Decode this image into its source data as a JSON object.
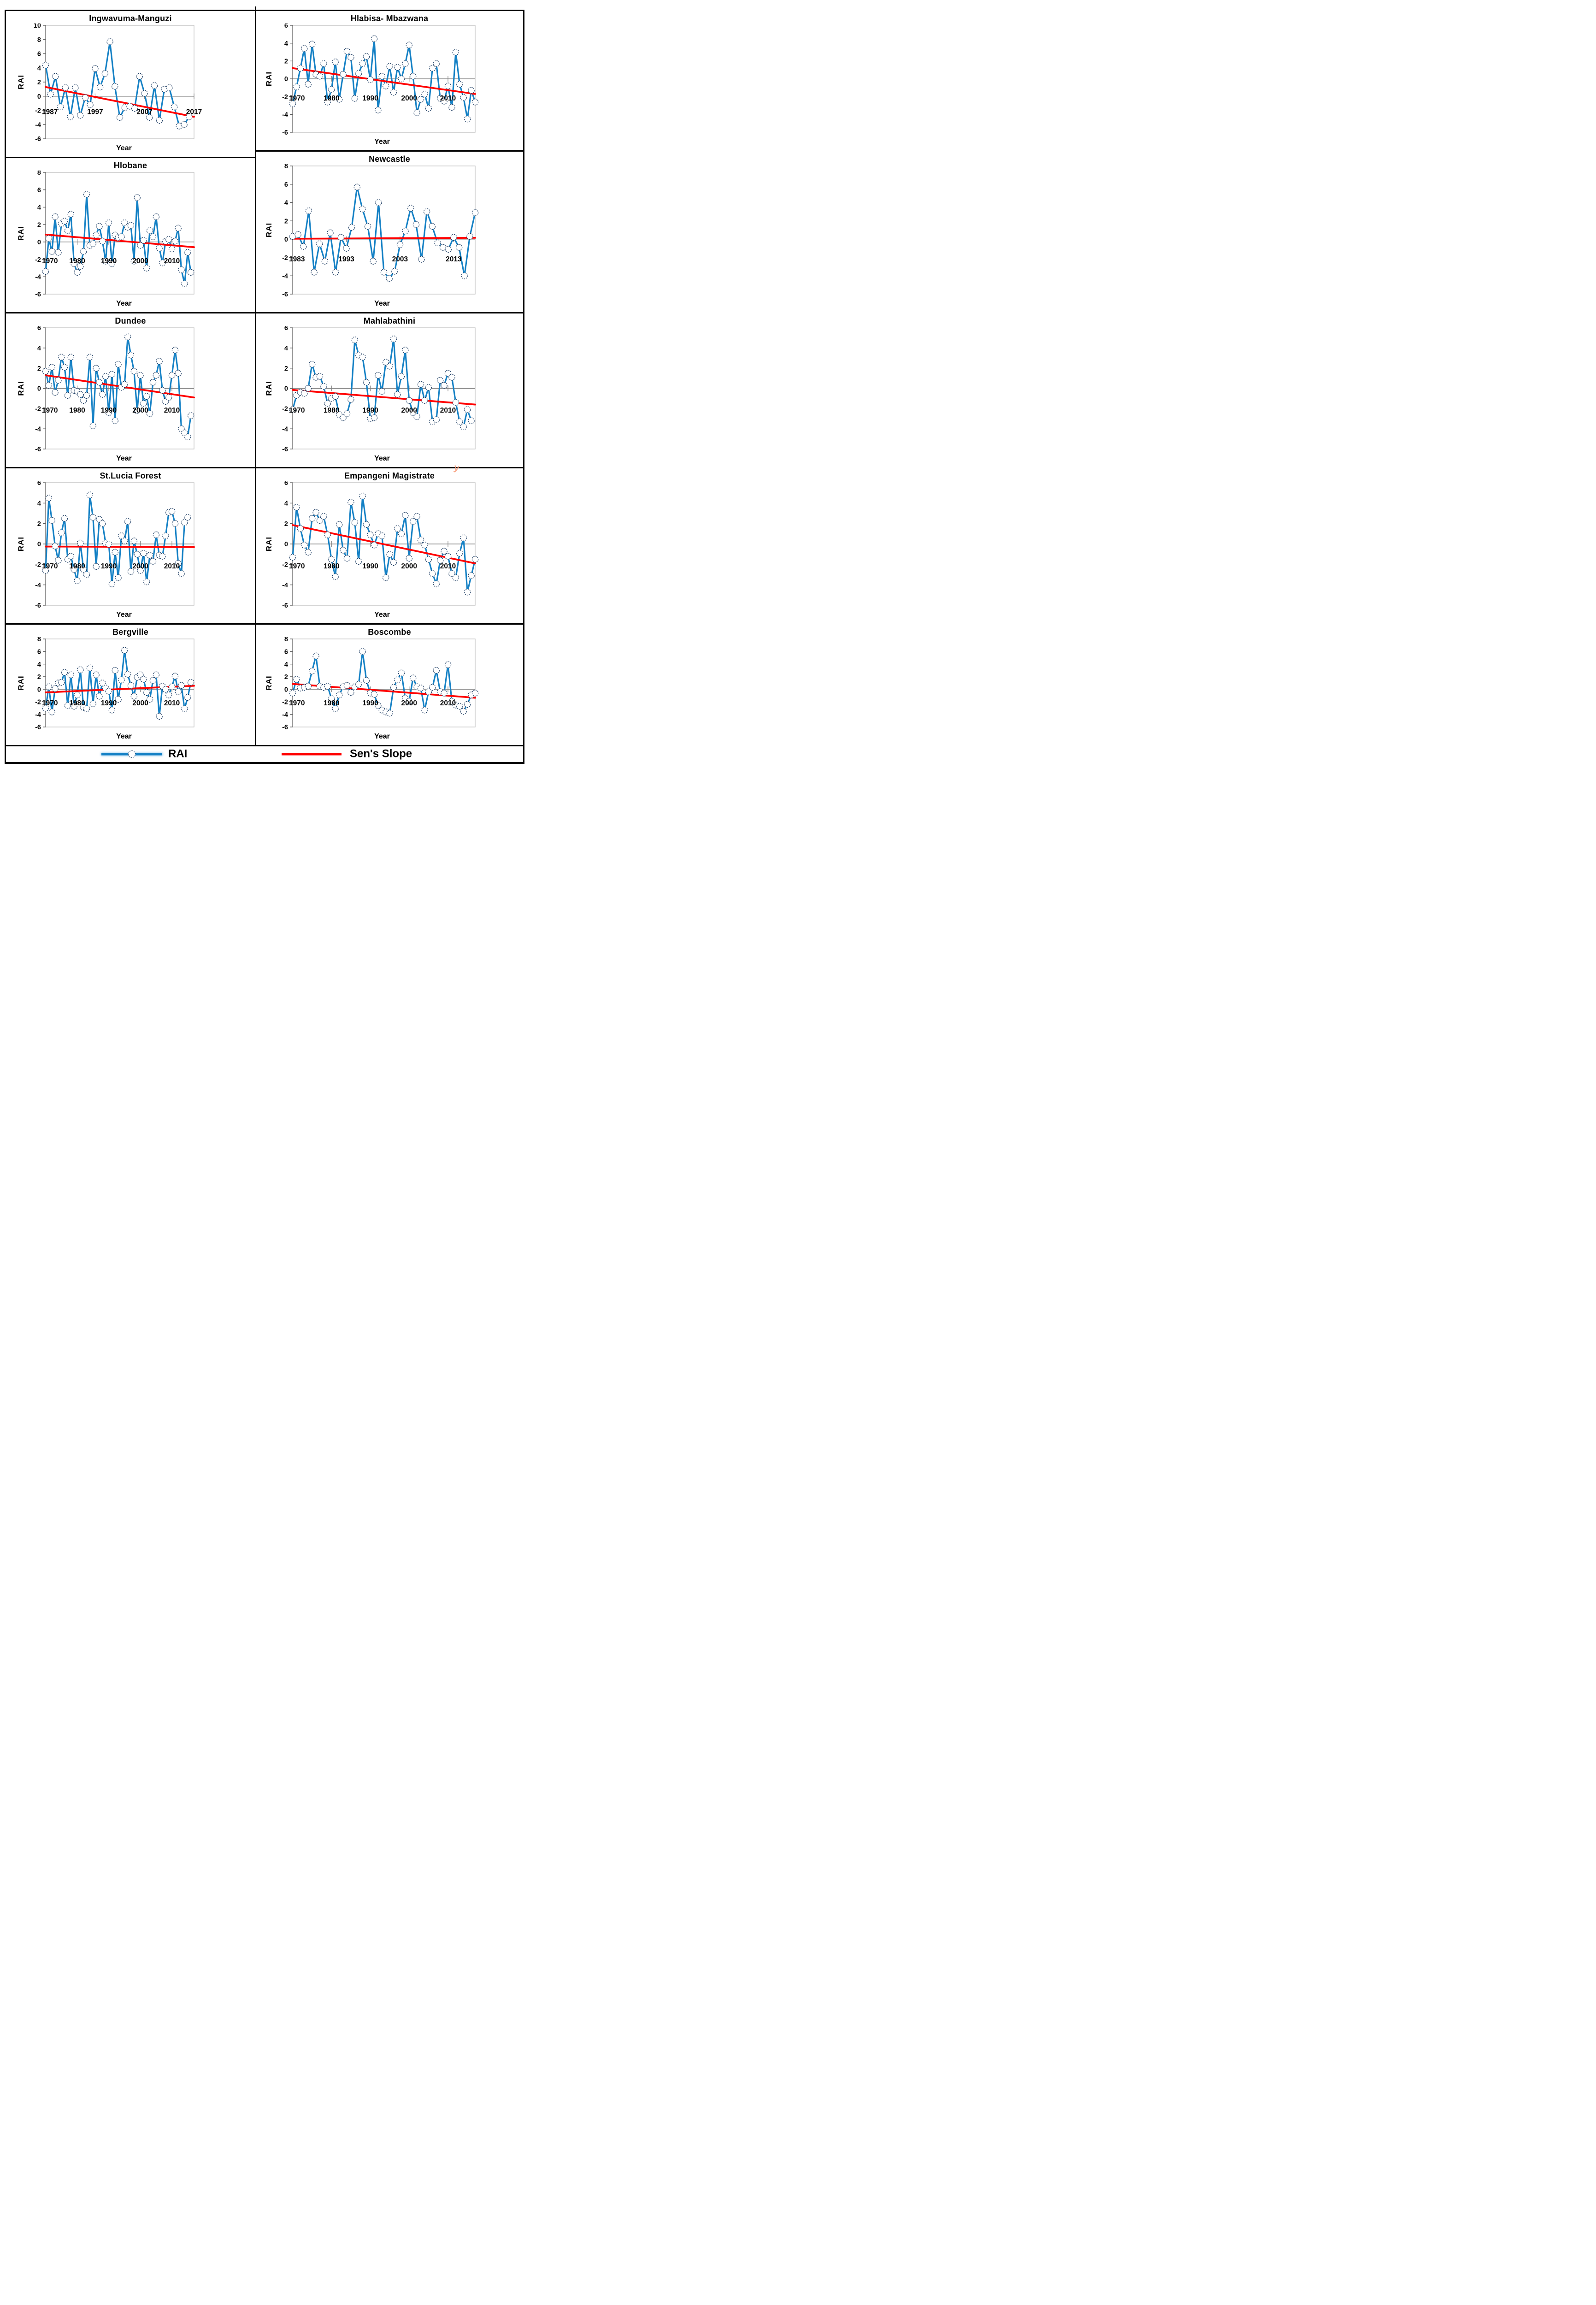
{
  "figure": {
    "background": "#ffffff"
  },
  "legend": {
    "items": [
      {
        "label": "RAI",
        "type": "line-with-marker",
        "color": "#1581C5"
      },
      {
        "label": "Sen's Slope",
        "type": "line",
        "color": "#FF0000"
      }
    ]
  },
  "stray_mark": {
    "text": "y",
    "color": "#F89B77"
  },
  "style_colors": {
    "series_line": "#1581C5",
    "trend_line": "#FF0000",
    "marker_stroke": "#17375E",
    "marker_fill": "#FFFFFF",
    "axis": "#808080",
    "plot_border": "#C0C0C0",
    "tick": "#595959",
    "text": "#000000"
  },
  "chart_data": [
    {
      "type": "line",
      "title": "Ingwavuma-Manguzi",
      "xlabel": "Year",
      "ylabel": "RAI",
      "series_name": "RAI",
      "trend_name": "Sen's Slope",
      "x_start": 1987,
      "x_end": 2017,
      "x_step": 1,
      "xticks": [
        1987,
        1997,
        2007,
        2017
      ],
      "ylim": [
        -6,
        10
      ],
      "ytick_step": 2,
      "grid": "zero-line-only",
      "legend_position": "none",
      "values": [
        4.4,
        0.3,
        2.8,
        -1.5,
        1.2,
        -2.9,
        1.2,
        -2.7,
        -0.2,
        -1.2,
        3.9,
        1.3,
        3.2,
        7.7,
        1.4,
        -3.0,
        -1.6,
        -1.4,
        -1.7,
        2.8,
        0.4,
        -3.0,
        1.5,
        -3.4,
        1.0,
        1.2,
        -1.5,
        -4.2,
        -4.0,
        -2.9
      ],
      "sens_slope": {
        "start": 1.3,
        "end": -2.9
      }
    },
    {
      "type": "line",
      "title": "Hlabisa- Mbazwana",
      "xlabel": "Year",
      "ylabel": "RAI",
      "series_name": "RAI",
      "trend_name": "Sen's Slope",
      "x_start": 1970,
      "x_end": 2017,
      "x_step": 1,
      "xticks": [
        1970,
        1980,
        1990,
        2000,
        2010
      ],
      "ylim": [
        -6,
        6
      ],
      "ytick_step": 2,
      "grid": "zero-line-only",
      "legend_position": "none",
      "values": [
        -2.8,
        -0.9,
        1.2,
        3.4,
        -0.6,
        3.9,
        0.5,
        0.3,
        1.7,
        -2.6,
        -1.2,
        1.9,
        -2.3,
        0.5,
        3.1,
        2.4,
        -2.2,
        0.6,
        1.7,
        2.5,
        -0.1,
        4.5,
        -3.5,
        0.3,
        -0.8,
        1.4,
        -1.5,
        1.3,
        0.0,
        1.7,
        3.8,
        0.3,
        -3.8,
        -2.3,
        -1.7,
        -3.3,
        1.2,
        1.7,
        -2.2,
        -2.5,
        -0.8,
        -3.2,
        3.0,
        -0.6,
        -2.1,
        -4.5,
        -1.3,
        -2.6
      ],
      "sens_slope": {
        "start": 1.2,
        "end": -1.7
      }
    },
    {
      "type": "line",
      "title": "Hlobane",
      "xlabel": "Year",
      "ylabel": "RAI",
      "series_name": "RAI",
      "trend_name": "Sen's Slope",
      "x_start": 1970,
      "x_end": 2017,
      "x_step": 1,
      "xticks": [
        1970,
        1980,
        1990,
        2000,
        2010
      ],
      "ylim": [
        -6,
        8
      ],
      "ytick_step": 2,
      "grid": "zero-line-only",
      "legend_position": "none",
      "values": [
        -3.4,
        0.4,
        -1.1,
        2.9,
        -1.2,
        2.1,
        2.4,
        1.3,
        3.2,
        -2.5,
        -3.5,
        -2.8,
        -1.1,
        5.5,
        -0.4,
        -0.2,
        0.8,
        1.8,
        0.1,
        -2.2,
        2.2,
        -2.5,
        0.8,
        0.5,
        0.6,
        2.2,
        1.7,
        1.9,
        -2.2,
        5.1,
        -0.4,
        0.2,
        -3.0,
        1.3,
        0.6,
        2.9,
        -0.7,
        -2.4,
        0.1,
        0.3,
        -0.8,
        0.1,
        1.6,
        -3.2,
        -4.8,
        -1.2,
        -3.5
      ],
      "sens_slope": {
        "start": 0.85,
        "end": -0.6
      }
    },
    {
      "type": "line",
      "title": "Newcastle",
      "xlabel": "Year",
      "ylabel": "RAI",
      "series_name": "RAI",
      "trend_name": "Sen's Slope",
      "x_start": 1983,
      "x_end": 2017,
      "x_step": 1,
      "xticks": [
        1983,
        1993,
        2003,
        2013
      ],
      "ylim": [
        -6,
        8
      ],
      "ytick_step": 2,
      "grid": "zero-line-only",
      "legend_position": "none",
      "values": [
        0.3,
        0.5,
        -0.8,
        3.1,
        -3.6,
        -0.5,
        -2.4,
        0.7,
        -3.6,
        0.2,
        -1.0,
        1.3,
        5.7,
        3.3,
        1.4,
        -2.4,
        4.0,
        -3.6,
        -4.3,
        -3.5,
        -0.6,
        0.9,
        3.4,
        1.6,
        -2.2,
        3.0,
        1.4,
        -0.4,
        -0.9,
        -1.1,
        0.2,
        -0.9,
        -4.0,
        0.3,
        2.9
      ],
      "sens_slope": {
        "start": 0.05,
        "end": 0.15
      }
    },
    {
      "type": "line",
      "title": "Dundee",
      "xlabel": "Year",
      "ylabel": "RAI",
      "series_name": "RAI",
      "trend_name": "Sen's Slope",
      "x_start": 1970,
      "x_end": 2017,
      "x_step": 1,
      "xticks": [
        1970,
        1980,
        1990,
        2000,
        2010
      ],
      "ylim": [
        -6,
        6
      ],
      "ytick_step": 2,
      "grid": "zero-line-only",
      "legend_position": "none",
      "values": [
        1.7,
        0.3,
        2.1,
        -0.4,
        0.8,
        3.1,
        2.1,
        -0.7,
        3.1,
        -0.2,
        -0.3,
        -0.6,
        -1.2,
        -0.7,
        3.1,
        -3.7,
        2.0,
        0.6,
        -0.6,
        1.2,
        -2.4,
        1.4,
        -3.2,
        2.4,
        0.1,
        0.4,
        5.1,
        3.3,
        1.7,
        -2.2,
        1.3,
        -1.5,
        -0.8,
        -2.5,
        0.6,
        1.3,
        2.7,
        -0.2,
        -1.3,
        -0.9,
        1.3,
        3.8,
        1.5,
        -4.0,
        -4.4,
        -4.8,
        -2.7
      ],
      "sens_slope": {
        "start": 1.3,
        "end": -0.9
      }
    },
    {
      "type": "line",
      "title": "Mahlabathini",
      "xlabel": "Year",
      "ylabel": "RAI",
      "series_name": "RAI",
      "trend_name": "Sen's Slope",
      "x_start": 1970,
      "x_end": 2017,
      "x_step": 1,
      "xticks": [
        1970,
        1980,
        1990,
        2000,
        2010
      ],
      "ylim": [
        -6,
        6
      ],
      "ytick_step": 2,
      "grid": "zero-line-only",
      "legend_position": "none",
      "values": [
        -2.1,
        -0.7,
        -0.4,
        -0.5,
        0.0,
        2.4,
        1.1,
        1.2,
        0.2,
        -1.5,
        -1.0,
        -0.8,
        -2.6,
        -2.9,
        -2.5,
        -1.1,
        4.8,
        3.3,
        3.1,
        0.6,
        -3.0,
        -2.9,
        1.3,
        -0.3,
        2.6,
        2.2,
        4.9,
        -0.6,
        1.2,
        3.8,
        -1.2,
        -2.4,
        -2.8,
        0.4,
        -1.2,
        0.1,
        -3.3,
        -3.1,
        0.8,
        0.3,
        1.5,
        1.1,
        -1.4,
        -3.3,
        -3.8,
        -2.1,
        -3.2
      ],
      "sens_slope": {
        "start": -0.15,
        "end": -1.6
      }
    },
    {
      "type": "line",
      "title": "St.Lucia Forest",
      "xlabel": "Year",
      "ylabel": "RAI",
      "series_name": "RAI",
      "trend_name": "Sen's Slope",
      "x_start": 1970,
      "x_end": 2017,
      "x_step": 1,
      "xticks": [
        1970,
        1980,
        1990,
        2000,
        2010
      ],
      "ylim": [
        -6,
        6
      ],
      "ytick_step": 2,
      "grid": "zero-line-only",
      "legend_position": "none",
      "values": [
        -2.6,
        4.5,
        2.3,
        -0.2,
        -1.6,
        1.1,
        2.5,
        -1.5,
        -1.2,
        -2.5,
        -3.6,
        0.1,
        -2.5,
        -3.0,
        4.8,
        2.6,
        -2.2,
        2.4,
        2.0,
        0.1,
        0.0,
        -3.9,
        -0.8,
        -3.3,
        0.8,
        0.3,
        2.2,
        -2.7,
        0.3,
        -1.0,
        -2.6,
        -0.9,
        -3.7,
        -1.1,
        -1.7,
        0.9,
        -1.1,
        -1.2,
        0.8,
        3.1,
        3.2,
        2.0,
        -1.9,
        -2.9,
        2.1,
        2.6
      ],
      "sens_slope": {
        "start": -0.25,
        "end": -0.3
      }
    },
    {
      "type": "line",
      "title": "Empangeni Magistrate",
      "xlabel": "Year",
      "ylabel": "RAI",
      "series_name": "RAI",
      "trend_name": "Sen's Slope",
      "x_start": 1970,
      "x_end": 2017,
      "x_step": 1,
      "xticks": [
        1970,
        1980,
        1990,
        2000,
        2010
      ],
      "ylim": [
        -6,
        6
      ],
      "ytick_step": 2,
      "grid": "zero-line-only",
      "legend_position": "none",
      "values": [
        -1.3,
        3.6,
        1.5,
        -0.1,
        -0.8,
        2.5,
        3.1,
        2.3,
        2.7,
        0.9,
        -1.5,
        -3.2,
        1.9,
        -0.6,
        -1.4,
        4.1,
        2.1,
        -1.7,
        4.7,
        1.9,
        0.9,
        -0.1,
        1.0,
        0.8,
        -3.3,
        -1.0,
        -1.8,
        1.5,
        1.0,
        2.8,
        -1.4,
        2.2,
        2.7,
        0.4,
        -0.1,
        -1.5,
        -2.9,
        -3.9,
        -1.6,
        -0.7,
        -1.2,
        -2.9,
        -3.3,
        -0.9,
        0.6,
        -4.7,
        -3.1,
        -1.5
      ],
      "sens_slope": {
        "start": 1.85,
        "end": -1.9
      }
    },
    {
      "type": "line",
      "title": "Bergville",
      "xlabel": "Year",
      "ylabel": "RAI",
      "series_name": "RAI",
      "trend_name": "Sen's Slope",
      "x_start": 1970,
      "x_end": 2017,
      "x_step": 1,
      "xticks": [
        1970,
        1980,
        1990,
        2000,
        2010
      ],
      "ylim": [
        -6,
        8
      ],
      "ytick_step": 2,
      "grid": "zero-line-only",
      "legend_position": "none",
      "values": [
        -3.0,
        0.4,
        -3.6,
        0.1,
        1.0,
        1.1,
        2.7,
        -2.6,
        2.3,
        -2.7,
        -0.9,
        3.1,
        -2.9,
        -3.1,
        3.4,
        -2.3,
        2.3,
        -1.1,
        1.0,
        0.2,
        -0.3,
        -3.3,
        3.0,
        -1.6,
        1.5,
        6.2,
        2.4,
        0.6,
        -1.1,
        1.9,
        2.3,
        1.6,
        -0.5,
        -1.6,
        1.4,
        2.3,
        -4.3,
        0.5,
        0.0,
        -0.9,
        0.4,
        2.1,
        -0.4,
        0.6,
        -3.1,
        -1.3,
        1.1
      ],
      "sens_slope": {
        "start": -0.5,
        "end": 0.55
      }
    },
    {
      "type": "line",
      "title": "Boscombe",
      "xlabel": "Year",
      "ylabel": "RAI",
      "series_name": "RAI",
      "trend_name": "Sen's Slope",
      "x_start": 1970,
      "x_end": 2017,
      "x_step": 1,
      "xticks": [
        1970,
        1980,
        1990,
        2000,
        2010
      ],
      "ylim": [
        -6,
        8
      ],
      "ytick_step": 2,
      "grid": "zero-line-only",
      "legend_position": "none",
      "values": [
        -0.6,
        1.6,
        0.2,
        0.3,
        0.5,
        2.9,
        5.3,
        0.5,
        0.3,
        0.5,
        -1.5,
        -3.1,
        -0.9,
        0.4,
        0.6,
        -0.5,
        0.4,
        0.8,
        6.0,
        1.4,
        -0.6,
        -0.8,
        -2.6,
        -3.3,
        -3.6,
        -3.8,
        0.3,
        1.5,
        2.6,
        -1.4,
        -1.9,
        1.8,
        0.4,
        0.2,
        -3.3,
        -0.4,
        0.3,
        3.0,
        -0.4,
        -0.6,
        3.9,
        -1.9,
        -2.5,
        -2.7,
        -3.5,
        -2.4,
        -0.9,
        -0.6
      ],
      "sens_slope": {
        "start": 0.85,
        "end": -1.35
      }
    }
  ]
}
